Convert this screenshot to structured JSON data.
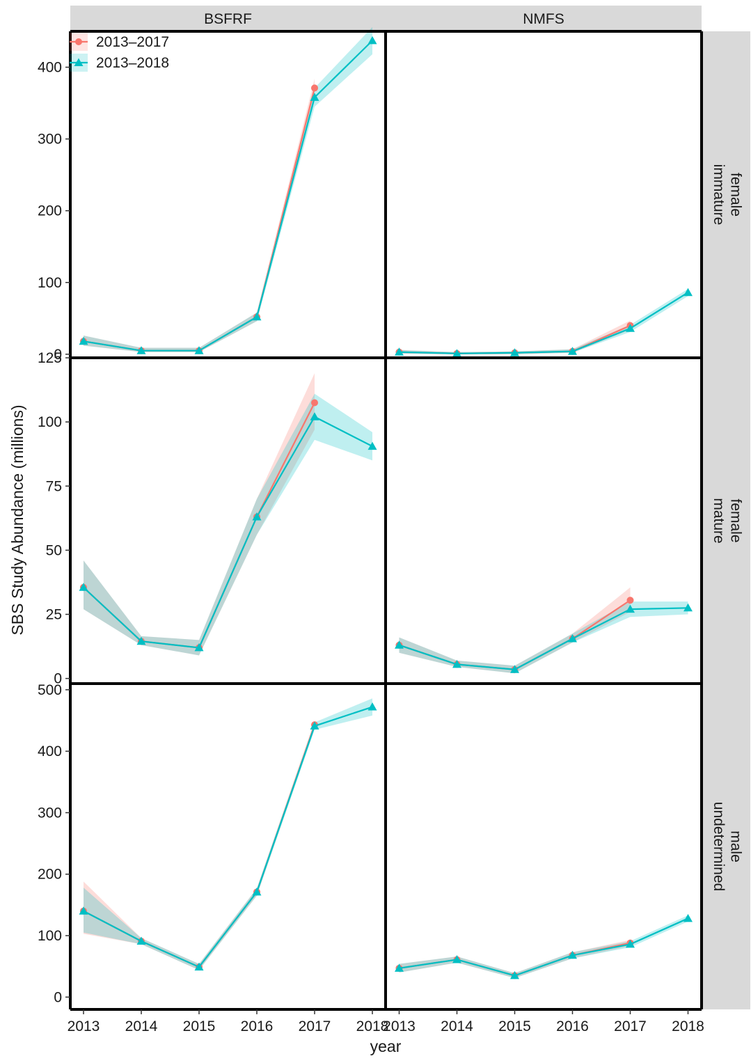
{
  "chart_data": {
    "type": "line",
    "ylabel": "SBS Study Abundance (millions)",
    "xlabel": "year",
    "x": [
      2013,
      2014,
      2015,
      2016,
      2017,
      2018
    ],
    "x_tick_labels": [
      "2013",
      "2014",
      "2015",
      "2016",
      "2017",
      "2018"
    ],
    "columns": [
      "BSFRF",
      "NMFS"
    ],
    "rows": [
      {
        "label_line1": "female",
        "label_line2": "immature",
        "ylim": [
          -5,
          450
        ],
        "yticks": [
          0,
          100,
          200,
          300,
          400
        ],
        "ytick_labels": [
          "0",
          "100",
          "200",
          "300",
          "400"
        ]
      },
      {
        "label_line1": "female",
        "label_line2": "mature",
        "ylim": [
          -2,
          125
        ],
        "yticks": [
          0,
          25,
          50,
          75,
          100,
          125
        ],
        "ytick_labels": [
          "0",
          "25",
          "50",
          "75",
          "100",
          "125"
        ]
      },
      {
        "label_line1": "male",
        "label_line2": "undetermined",
        "ylim": [
          -20,
          510
        ],
        "yticks": [
          0,
          100,
          200,
          300,
          400,
          500
        ],
        "ytick_labels": [
          "0",
          "100",
          "200",
          "300",
          "400",
          "500"
        ]
      }
    ],
    "legend": {
      "position": "top-left",
      "entries": [
        "2013–2017",
        "2013–2018"
      ]
    },
    "grid": false,
    "series_colors": {
      "2013–2017": "#F8766D",
      "2013–2018": "#00BFC4"
    },
    "panels": [
      {
        "row": 0,
        "col": 0,
        "series": [
          {
            "name": "2013–2017",
            "values": [
              18,
              5,
              5,
              52,
              371
            ],
            "lower": [
              12,
              3,
              3,
              46,
              358
            ],
            "upper": [
              26,
              9,
              9,
              58,
              384
            ]
          },
          {
            "name": "2013–2018",
            "values": [
              18,
              5,
              5,
              52,
              358,
              437
            ],
            "lower": [
              12,
              3,
              3,
              46,
              345,
              418
            ],
            "upper": [
              26,
              9,
              9,
              58,
              371,
              456
            ]
          }
        ]
      },
      {
        "row": 0,
        "col": 1,
        "series": [
          {
            "name": "2013–2017",
            "values": [
              3,
              1,
              2,
              4,
              40
            ],
            "lower": [
              1,
              0,
              0,
              2,
              34
            ],
            "upper": [
              6,
              3,
              4,
              7,
              47
            ]
          },
          {
            "name": "2013–2018",
            "values": [
              3,
              1,
              2,
              4,
              36,
              86
            ],
            "lower": [
              1,
              0,
              0,
              2,
              31,
              81
            ],
            "upper": [
              6,
              3,
              4,
              7,
              41,
              91
            ]
          }
        ]
      },
      {
        "row": 1,
        "col": 0,
        "series": [
          {
            "name": "2013–2017",
            "values": [
              35.5,
              14.5,
              12,
              63,
              107.5
            ],
            "lower": [
              27,
              13,
              9,
              56,
              97
            ],
            "upper": [
              46,
              16.5,
              15,
              70,
              119
            ]
          },
          {
            "name": "2013–2018",
            "values": [
              35.5,
              14.5,
              12,
              63,
              102,
              90.5
            ],
            "lower": [
              27,
              13,
              9,
              56,
              93,
              85
            ],
            "upper": [
              46,
              16.5,
              15,
              70,
              111,
              96
            ]
          }
        ]
      },
      {
        "row": 1,
        "col": 1,
        "series": [
          {
            "name": "2013–2017",
            "values": [
              13,
              5.5,
              3.5,
              15.5,
              30.5
            ],
            "lower": [
              10,
              4.5,
              2,
              14,
              26
            ],
            "upper": [
              16,
              7,
              5,
              17.5,
              35.5
            ]
          },
          {
            "name": "2013–2018",
            "values": [
              13,
              5.5,
              3.5,
              15.5,
              27,
              27.5
            ],
            "lower": [
              10,
              4.5,
              2,
              14,
              24,
              25
            ],
            "upper": [
              16,
              7,
              5,
              17.5,
              30,
              30
            ]
          }
        ]
      },
      {
        "row": 2,
        "col": 0,
        "series": [
          {
            "name": "2013–2017",
            "values": [
              140,
              91,
              49,
              171,
              443
            ],
            "lower": [
              103,
              86,
              44,
              165,
              437
            ],
            "upper": [
              188,
              96,
              54,
              177,
              449
            ]
          },
          {
            "name": "2013–2018",
            "values": [
              140,
              91,
              49,
              171,
              441,
              472
            ],
            "lower": [
              105,
              86,
              44,
              165,
              435,
              458
            ],
            "upper": [
              178,
              96,
              54,
              177,
              447,
              486
            ]
          }
        ]
      },
      {
        "row": 2,
        "col": 1,
        "series": [
          {
            "name": "2013–2017",
            "values": [
              47,
              61,
              35,
              68,
              88
            ],
            "lower": [
              40,
              56,
              31,
              63,
              83
            ],
            "upper": [
              54,
              66,
              39,
              73,
              93
            ]
          },
          {
            "name": "2013–2018",
            "values": [
              47,
              61,
              35,
              68,
              86,
              128
            ],
            "lower": [
              40,
              56,
              31,
              63,
              81,
              123
            ],
            "upper": [
              54,
              66,
              39,
              73,
              91,
              133
            ]
          }
        ]
      }
    ]
  }
}
